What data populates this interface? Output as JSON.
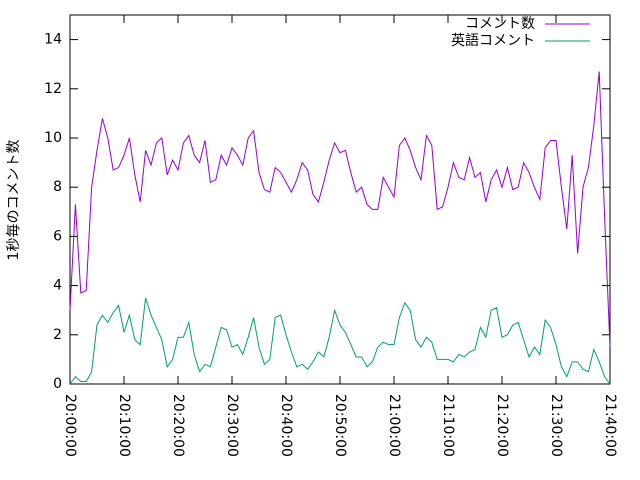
{
  "chart_data": {
    "type": "line",
    "y_label": "1秒毎のコメント数",
    "x": [
      "20:00:00",
      "20:01:00",
      "20:02:00",
      "20:03:00",
      "20:04:00",
      "20:05:00",
      "20:06:00",
      "20:07:00",
      "20:08:00",
      "20:09:00",
      "20:10:00",
      "20:11:00",
      "20:12:00",
      "20:13:00",
      "20:14:00",
      "20:15:00",
      "20:16:00",
      "20:17:00",
      "20:18:00",
      "20:19:00",
      "20:20:00",
      "20:21:00",
      "20:22:00",
      "20:23:00",
      "20:24:00",
      "20:25:00",
      "20:26:00",
      "20:27:00",
      "20:28:00",
      "20:29:00",
      "20:30:00",
      "20:31:00",
      "20:32:00",
      "20:33:00",
      "20:34:00",
      "20:35:00",
      "20:36:00",
      "20:37:00",
      "20:38:00",
      "20:39:00",
      "20:40:00",
      "20:41:00",
      "20:42:00",
      "20:43:00",
      "20:44:00",
      "20:45:00",
      "20:46:00",
      "20:47:00",
      "20:48:00",
      "20:49:00",
      "20:50:00",
      "20:51:00",
      "20:52:00",
      "20:53:00",
      "20:54:00",
      "20:55:00",
      "20:56:00",
      "20:57:00",
      "20:58:00",
      "20:59:00",
      "21:00:00",
      "21:01:00",
      "21:02:00",
      "21:03:00",
      "21:04:00",
      "21:05:00",
      "21:06:00",
      "21:07:00",
      "21:08:00",
      "21:09:00",
      "21:10:00",
      "21:11:00",
      "21:12:00",
      "21:13:00",
      "21:14:00",
      "21:15:00",
      "21:16:00",
      "21:17:00",
      "21:18:00",
      "21:19:00",
      "21:20:00",
      "21:21:00",
      "21:22:00",
      "21:23:00",
      "21:24:00",
      "21:25:00",
      "21:26:00",
      "21:27:00",
      "21:28:00",
      "21:29:00",
      "21:30:00",
      "21:31:00",
      "21:32:00",
      "21:33:00",
      "21:34:00",
      "21:35:00",
      "21:36:00",
      "21:37:00",
      "21:38:00",
      "21:39:00",
      "21:40:00"
    ],
    "series": [
      {
        "name": "コメント数",
        "color": "#9400d3",
        "values": [
          3.0,
          7.3,
          3.7,
          3.8,
          8.0,
          9.5,
          10.8,
          10.0,
          8.7,
          8.8,
          9.3,
          10.0,
          8.5,
          7.4,
          9.5,
          8.9,
          9.8,
          10.0,
          8.5,
          9.1,
          8.7,
          9.8,
          10.1,
          9.3,
          9.0,
          9.9,
          8.2,
          8.3,
          9.3,
          8.9,
          9.6,
          9.3,
          8.9,
          10.0,
          10.3,
          8.6,
          7.9,
          7.8,
          8.8,
          8.6,
          8.2,
          7.8,
          8.3,
          9.0,
          8.7,
          7.7,
          7.4,
          8.2,
          9.1,
          9.8,
          9.4,
          9.5,
          8.6,
          7.8,
          8.0,
          7.3,
          7.1,
          7.1,
          8.4,
          8.0,
          7.6,
          9.7,
          10.0,
          9.5,
          8.8,
          8.3,
          10.1,
          9.7,
          7.1,
          7.2,
          8.0,
          9.0,
          8.4,
          8.3,
          9.2,
          8.4,
          8.6,
          7.4,
          8.3,
          8.7,
          8.0,
          8.8,
          7.9,
          8.0,
          9.0,
          8.6,
          8.0,
          7.5,
          9.6,
          9.9,
          9.9,
          8.0,
          6.3,
          9.3,
          5.3,
          8.0,
          8.8,
          10.5,
          12.7,
          6.8,
          1.5
        ]
      },
      {
        "name": "英語コメント",
        "color": "#009e73",
        "values": [
          0.0,
          0.3,
          0.1,
          0.1,
          0.5,
          2.4,
          2.8,
          2.5,
          2.9,
          3.2,
          2.1,
          2.8,
          1.8,
          1.6,
          3.5,
          2.8,
          2.3,
          1.8,
          0.7,
          1.0,
          1.9,
          1.9,
          2.5,
          1.2,
          0.5,
          0.8,
          0.7,
          1.5,
          2.3,
          2.2,
          1.5,
          1.6,
          1.2,
          1.9,
          2.7,
          1.5,
          0.8,
          1.0,
          2.7,
          2.8,
          2.0,
          1.3,
          0.7,
          0.8,
          0.6,
          0.9,
          1.3,
          1.1,
          1.9,
          3.0,
          2.4,
          2.1,
          1.6,
          1.1,
          1.1,
          0.7,
          0.9,
          1.5,
          1.7,
          1.6,
          1.6,
          2.7,
          3.3,
          3.0,
          1.8,
          1.5,
          1.9,
          1.7,
          1.0,
          1.0,
          1.0,
          0.9,
          1.2,
          1.1,
          1.3,
          1.4,
          2.3,
          1.9,
          3.0,
          3.1,
          1.9,
          2.0,
          2.4,
          2.5,
          1.8,
          1.1,
          1.5,
          1.2,
          2.6,
          2.3,
          1.6,
          0.7,
          0.3,
          0.9,
          0.9,
          0.6,
          0.5,
          1.4,
          0.9,
          0.3,
          0.0
        ]
      }
    ],
    "xlim": [
      "20:00:00",
      "21:40:00"
    ],
    "xticks": [
      "20:00:00",
      "20:10:00",
      "20:20:00",
      "20:30:00",
      "20:40:00",
      "20:50:00",
      "21:00:00",
      "21:10:00",
      "21:20:00",
      "21:30:00",
      "21:40:00"
    ],
    "ylim": [
      0,
      15
    ],
    "yticks": [
      0,
      2,
      4,
      6,
      8,
      10,
      12,
      14
    ],
    "legend": "top-right"
  }
}
